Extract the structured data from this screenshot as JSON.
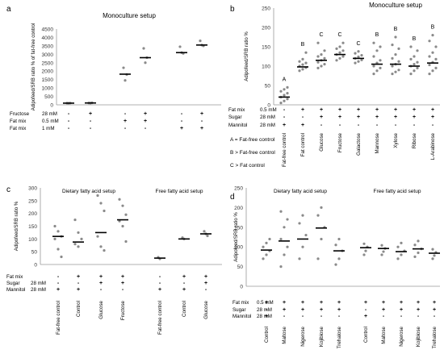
{
  "panel_labels": [
    "a",
    "b",
    "c",
    "d"
  ],
  "chart_data": [
    {
      "panel": "a",
      "type": "scatter",
      "title": "Monoculture setup",
      "ylabel": "Adipofeed/SRB ratio % of fat-free control",
      "ylim": [
        0,
        4500
      ],
      "yticks": [
        0,
        500,
        1000,
        1500,
        2000,
        2500,
        3000,
        3500,
        4000,
        4500
      ],
      "condition_rows": [
        {
          "label": "Fructose",
          "conc": "28 mM",
          "marks": [
            "-",
            "+",
            "",
            "-",
            "+",
            "",
            "-",
            "+"
          ]
        },
        {
          "label": "Fat mix",
          "conc": "0.5 mM",
          "marks": [
            "-",
            "-",
            "",
            "+",
            "+",
            "",
            "-",
            "-"
          ]
        },
        {
          "label": "Fat mix",
          "conc": "1   mM",
          "marks": [
            "-",
            "-",
            "",
            "-",
            "-",
            "",
            "+",
            "+"
          ]
        }
      ],
      "groups": [
        {
          "mean": 100,
          "points": [
            100,
            95,
            105
          ]
        },
        {
          "mean": 110,
          "points": [
            110,
            100,
            120
          ]
        },
        {
          "mean": 1820,
          "points": [
            2200,
            1450,
            1800
          ]
        },
        {
          "mean": 2800,
          "points": [
            3350,
            2500,
            2800
          ]
        },
        {
          "mean": 3100,
          "points": [
            3450,
            3100,
            3050
          ]
        },
        {
          "mean": 3550,
          "points": [
            3800,
            3550,
            3500
          ]
        }
      ]
    },
    {
      "panel": "b",
      "type": "scatter",
      "title": "Monoculture setup",
      "ylabel": "Adipofeed/SRB ratio %",
      "ylim": [
        0,
        250
      ],
      "yticks": [
        0,
        50,
        100,
        150,
        200,
        250
      ],
      "categories": [
        "Fat-free control",
        "Fat control",
        "Glucose",
        "Fructose",
        "Galactose",
        "Mannose",
        "Xylose",
        "Ribose",
        "L-Arabinose"
      ],
      "letters": [
        "A",
        "B",
        "C",
        "C",
        "C",
        "B",
        "B",
        "B",
        "B"
      ],
      "condition_rows": [
        {
          "label": "Fat mix",
          "conc": "0.5 mM",
          "marks": [
            "-",
            "+",
            "+",
            "+",
            "+",
            "+",
            "+",
            "+",
            "+"
          ]
        },
        {
          "label": "Sugar",
          "conc": "28 mM",
          "marks": [
            "-",
            "-",
            "+",
            "+",
            "+",
            "+",
            "+",
            "+",
            "+"
          ]
        },
        {
          "label": "Mannitol",
          "conc": "28 mM",
          "marks": [
            "+",
            "+",
            "-",
            "-",
            "-",
            "-",
            "-",
            "-",
            "-"
          ]
        }
      ],
      "legend_lines": [
        "A = Fat-free control",
        "B > Fat-free control",
        "C > Fat control"
      ],
      "groups": [
        {
          "mean": 20,
          "points": [
            5,
            10,
            15,
            20,
            25,
            30,
            35,
            40,
            45
          ]
        },
        {
          "mean": 98,
          "points": [
            88,
            92,
            96,
            100,
            104,
            108,
            112,
            118,
            135
          ]
        },
        {
          "mean": 115,
          "points": [
            95,
            100,
            105,
            110,
            115,
            120,
            125,
            130,
            140,
            160
          ]
        },
        {
          "mean": 130,
          "points": [
            115,
            120,
            125,
            130,
            135,
            140,
            145,
            150,
            160
          ]
        },
        {
          "mean": 120,
          "points": [
            108,
            112,
            116,
            120,
            124,
            128,
            133,
            138
          ]
        },
        {
          "mean": 105,
          "points": [
            80,
            88,
            95,
            100,
            108,
            115,
            125,
            140,
            150,
            160
          ]
        },
        {
          "mean": 105,
          "points": [
            80,
            85,
            90,
            100,
            105,
            112,
            120,
            130,
            145,
            155,
            175
          ]
        },
        {
          "mean": 100,
          "points": [
            80,
            88,
            95,
            100,
            105,
            110,
            118,
            125,
            140,
            150
          ]
        },
        {
          "mean": 108,
          "points": [
            80,
            88,
            95,
            103,
            110,
            118,
            125,
            135,
            150,
            165,
            180
          ]
        }
      ]
    },
    {
      "panel": "c",
      "type": "scatter",
      "ylabel": "Adipofeed/SRB ratio %",
      "ylim": [
        0,
        300
      ],
      "yticks": [
        0,
        50,
        100,
        150,
        200,
        250,
        300
      ],
      "section_titles": [
        "Dietary fatty acid setup",
        "Free fatty acid setup"
      ],
      "categories": [
        "Fat-free control",
        "Control",
        "Glucose",
        "Fructose",
        "",
        "Fat-free control",
        "Control",
        "Glucose"
      ],
      "condition_rows": [
        {
          "label": "Fat mix",
          "conc": "",
          "marks": [
            "-",
            "+",
            "+",
            "+",
            "",
            "-",
            "+",
            "+"
          ]
        },
        {
          "label": "Sugar",
          "conc": "28 mM",
          "marks": [
            "-",
            "-",
            "+",
            "+",
            "",
            "-",
            "-",
            "+"
          ]
        },
        {
          "label": "Mannitol",
          "conc": "28 mM",
          "marks": [
            "+",
            "+",
            "-",
            "-",
            "",
            "+",
            "+",
            "-"
          ]
        }
      ],
      "groups": [
        {
          "mean": 110,
          "points": [
            150,
            130,
            110,
            100,
            60,
            30
          ]
        },
        {
          "mean": 88,
          "points": [
            175,
            125,
            100,
            80,
            70
          ]
        },
        {
          "mean": 125,
          "points": [
            270,
            240,
            210,
            110,
            70,
            55
          ]
        },
        {
          "mean": 175,
          "points": [
            255,
            230,
            195,
            170,
            150,
            90
          ]
        },
        null,
        {
          "mean": 25,
          "points": [
            28,
            22
          ]
        },
        {
          "mean": 100,
          "points": [
            105,
            100
          ]
        },
        {
          "mean": 120,
          "points": [
            130,
            120,
            112
          ]
        }
      ]
    },
    {
      "panel": "d",
      "type": "scatter",
      "ylabel": "Adipofeed/SRB ratio %",
      "ylim": [
        0,
        250
      ],
      "yticks": [
        0,
        50,
        100,
        150,
        200,
        250
      ],
      "section_titles": [
        "Dietary fatty acid setup",
        "Free fatty acid setup"
      ],
      "categories": [
        "Control",
        "Maltose",
        "Nigerose",
        "Kojibiose",
        "Trehalose",
        "",
        "Control",
        "Maltose",
        "Nigerose",
        "Kojibiose",
        "Trehalose"
      ],
      "condition_rows": [
        {
          "label": "Fat mix",
          "conc": "0.5 mM",
          "marks": [
            "+",
            "+",
            "+",
            "+",
            "+",
            "",
            "+",
            "+",
            "+",
            "+",
            "+"
          ]
        },
        {
          "label": "Sugar",
          "conc": "28 mM",
          "marks": [
            "-",
            "+",
            "+",
            "+",
            "+",
            "",
            "-",
            "+",
            "+",
            "+",
            "+"
          ]
        },
        {
          "label": "Mannitol",
          "conc": "28 mM",
          "marks": [
            "+",
            "-",
            "-",
            "-",
            "-",
            "",
            "+",
            "-",
            "-",
            "-",
            "-"
          ]
        }
      ],
      "groups": [
        {
          "mean": 92,
          "points": [
            70,
            80,
            90,
            100,
            110,
            120
          ]
        },
        {
          "mean": 115,
          "points": [
            50,
            80,
            100,
            120,
            150,
            170,
            190
          ]
        },
        {
          "mean": 120,
          "points": [
            70,
            100,
            130,
            160,
            180
          ]
        },
        {
          "mean": 148,
          "points": [
            70,
            120,
            150,
            180,
            200
          ]
        },
        {
          "mean": 90,
          "points": [
            55,
            70,
            90,
            105,
            120
          ]
        },
        null,
        {
          "mean": 98,
          "points": [
            80,
            90,
            100,
            108
          ]
        },
        {
          "mean": 96,
          "points": [
            80,
            88,
            96,
            104
          ]
        },
        {
          "mean": 88,
          "points": [
            70,
            80,
            90,
            100,
            110
          ]
        },
        {
          "mean": 95,
          "points": [
            75,
            85,
            95,
            105,
            115
          ]
        },
        {
          "mean": 84,
          "points": [
            70,
            78,
            86,
            94
          ]
        }
      ]
    }
  ]
}
